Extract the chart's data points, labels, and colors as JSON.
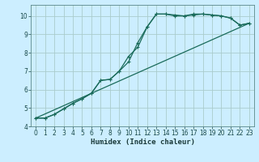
{
  "xlabel": "Humidex (Indice chaleur)",
  "bg_color": "#cceeff",
  "line_color": "#1a6b5a",
  "grid_color": "#aacccc",
  "xlim": [
    -0.5,
    23.5
  ],
  "ylim": [
    4,
    10.6
  ],
  "xticks": [
    0,
    1,
    2,
    3,
    4,
    5,
    6,
    7,
    8,
    9,
    10,
    11,
    12,
    13,
    14,
    15,
    16,
    17,
    18,
    19,
    20,
    21,
    22,
    23
  ],
  "yticks": [
    4,
    5,
    6,
    7,
    8,
    9,
    10
  ],
  "curve1_x": [
    0,
    1,
    2,
    3,
    4,
    5,
    6,
    7,
    8,
    9,
    10,
    11,
    12,
    13,
    14,
    15,
    16,
    17,
    18,
    19,
    20,
    21,
    22,
    23
  ],
  "curve1_y": [
    4.45,
    4.45,
    4.65,
    4.95,
    5.25,
    5.5,
    5.8,
    6.5,
    6.55,
    7.0,
    7.5,
    8.55,
    9.4,
    10.1,
    10.1,
    10.05,
    10.0,
    10.1,
    10.1,
    10.05,
    10.0,
    9.88,
    9.5,
    9.6
  ],
  "curve2_x": [
    0,
    1,
    2,
    3,
    4,
    5,
    6,
    7,
    8,
    9,
    10,
    11,
    12,
    13,
    14,
    15,
    16,
    17,
    18,
    19,
    20,
    21,
    22,
    23
  ],
  "curve2_y": [
    4.45,
    4.45,
    4.65,
    4.95,
    5.25,
    5.5,
    5.8,
    6.5,
    6.55,
    7.0,
    7.8,
    8.3,
    9.4,
    10.1,
    10.1,
    10.0,
    10.0,
    10.05,
    10.1,
    10.05,
    10.0,
    9.88,
    9.5,
    9.6
  ],
  "line3_x": [
    0,
    23
  ],
  "line3_y": [
    4.45,
    9.6
  ],
  "tick_fontsize": 5.5,
  "xlabel_fontsize": 6.5
}
